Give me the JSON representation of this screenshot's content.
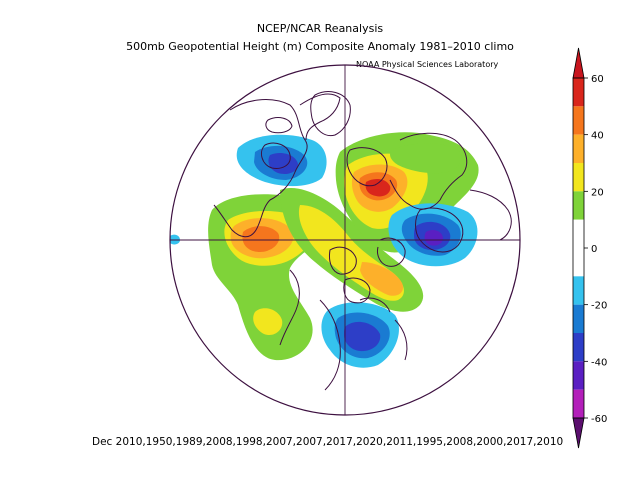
{
  "title": "NCEP/NCAR Reanalysis",
  "subtitle": "500mb Geopotential Height (m) Composite Anomaly 1981–2010 climo",
  "credit": "NOAA Physical Sciences Laboratory",
  "footer": "Dec 2010,1950,1989,2008,1998,2007,2007,2017,2020,2011,1995,2008,2000,2017,2010",
  "colorbar": {
    "min": -60,
    "max": 60,
    "tick_labels": [
      "60",
      "40",
      "20",
      "0",
      "-20",
      "-40",
      "-60"
    ],
    "tick_values": [
      60,
      40,
      20,
      0,
      -20,
      -40,
      -60
    ],
    "colors": [
      {
        "from": 50,
        "to": 60,
        "color": "#d9261c"
      },
      {
        "from": 40,
        "to": 50,
        "color": "#f5761d"
      },
      {
        "from": 30,
        "to": 40,
        "color": "#fdb02a"
      },
      {
        "from": 20,
        "to": 30,
        "color": "#f2e61e"
      },
      {
        "from": 10,
        "to": 20,
        "color": "#7fd339"
      },
      {
        "from": -10,
        "to": 10,
        "color": "#ffffff"
      },
      {
        "from": -20,
        "to": -10,
        "color": "#35c2ee"
      },
      {
        "from": -30,
        "to": -20,
        "color": "#1a7bd2"
      },
      {
        "from": -40,
        "to": -30,
        "color": "#2d3ec7"
      },
      {
        "from": -50,
        "to": -40,
        "color": "#5a1fc2"
      },
      {
        "from": -60,
        "to": -50,
        "color": "#b31fba"
      }
    ],
    "end_low": "#5b0f6e",
    "end_high": "#c8151e"
  },
  "colors": {
    "coast": "#3d1040",
    "grid": "#3d1040"
  }
}
